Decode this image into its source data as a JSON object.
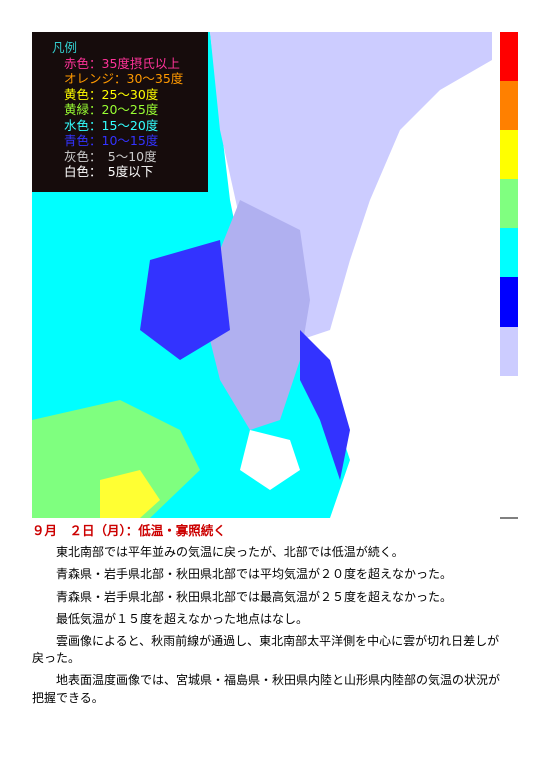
{
  "legend": {
    "title": "凡例",
    "items": [
      "赤色：35度摂氏以上",
      "オレンジ：30～35度",
      "黄色：25～30度",
      "黄緑：20～25度",
      "水色：15～20度",
      "青色：10～15度",
      "灰色：　5～10度",
      "白色：　5度以下"
    ]
  },
  "heading": "９月　２日（月）：低温・寡照続く",
  "paragraphs": [
    "東北南部では平年並みの気温に戻ったが、北部では低温が続く。",
    "青森県・岩手県北部・秋田県北部では平均気温が２０度を超えなかった。",
    "青森県・岩手県北部・秋田県北部では最高気温が２５度を超えなかった。",
    "最低気温が１５度を超えなかった地点はなし。",
    "雲画像によると、秋雨前線が通過し、東北南部太平洋側を中心に雲が切れ日差しが戻った。",
    "地表面温度画像では、宮城県・福島県・秋田県内陸と山形県内陸部の気温の状況が把握できる。"
  ]
}
